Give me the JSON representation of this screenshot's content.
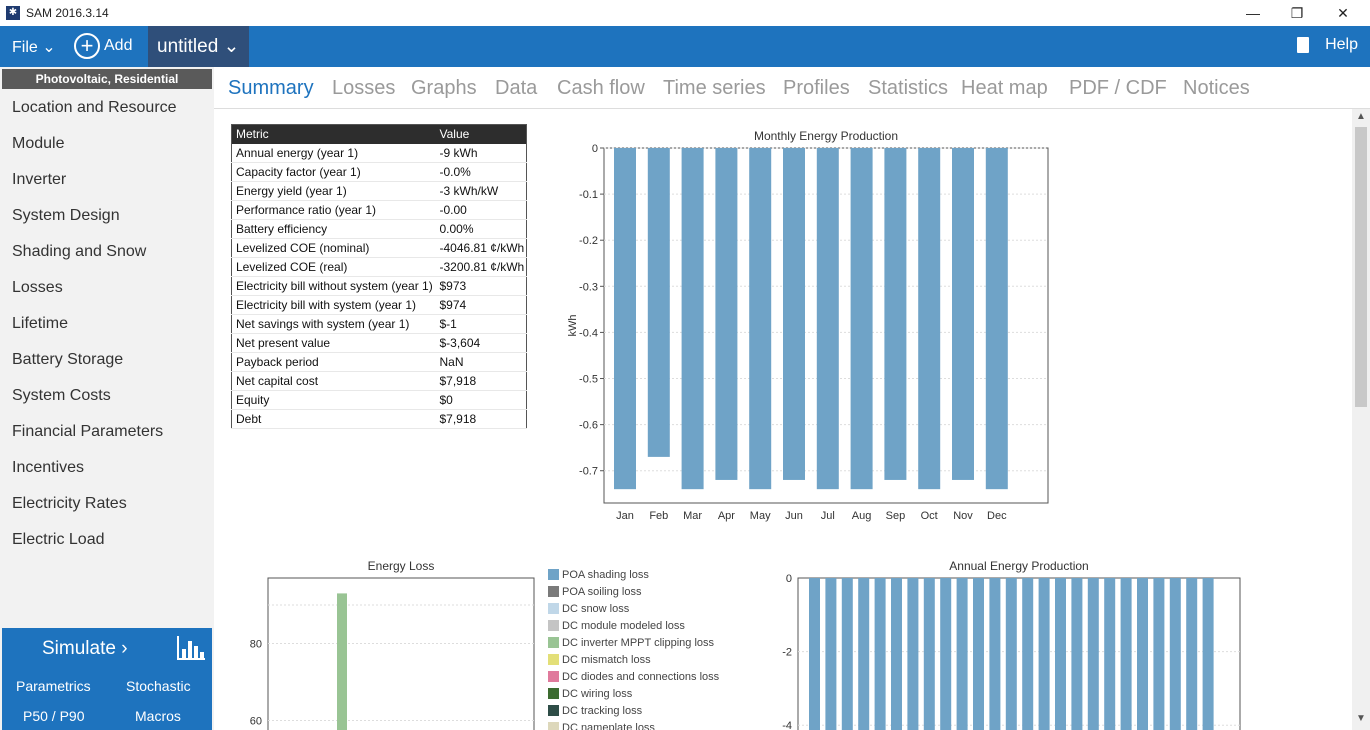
{
  "window": {
    "title": "SAM 2016.3.14",
    "controls": {
      "minimize": "—",
      "restore": "❐",
      "close": "✕"
    }
  },
  "topbar": {
    "file_label": "File ⌄",
    "add_label": "Add",
    "case_label": "untitled ⌄",
    "help_label": "Help"
  },
  "sidebar": {
    "technology": "Photovoltaic, Residential",
    "items": [
      "Location and Resource",
      "Module",
      "Inverter",
      "System Design",
      "Shading and Snow",
      "Losses",
      "Lifetime",
      "Battery Storage",
      "System Costs",
      "Financial Parameters",
      "Incentives",
      "Electricity Rates",
      "Electric Load"
    ],
    "simulate_label": "Simulate ›",
    "parametrics_label": "Parametrics",
    "stochastic_label": "Stochastic",
    "p50_label": "P50 / P90",
    "macros_label": "Macros"
  },
  "tabs": [
    "Summary",
    "Losses",
    "Graphs",
    "Data",
    "Cash flow",
    "Time series",
    "Profiles",
    "Statistics",
    "Heat map",
    "PDF / CDF",
    "Notices"
  ],
  "active_tab": "Summary",
  "metrics_table": {
    "headers": [
      "Metric",
      "Value"
    ],
    "rows": [
      [
        "Annual energy (year 1)",
        "-9 kWh"
      ],
      [
        "Capacity factor (year 1)",
        "-0.0%"
      ],
      [
        "Energy yield (year 1)",
        "-3 kWh/kW"
      ],
      [
        "Performance ratio (year 1)",
        "-0.00"
      ],
      [
        "Battery efficiency",
        "0.00%"
      ],
      [
        "Levelized COE (nominal)",
        "-4046.81 ¢/kWh"
      ],
      [
        "Levelized COE (real)",
        "-3200.81 ¢/kWh"
      ],
      [
        "Electricity bill without system (year 1)",
        "$973"
      ],
      [
        "Electricity bill with system (year 1)",
        "$974"
      ],
      [
        "Net savings with system (year 1)",
        "$-1"
      ],
      [
        "Net present value",
        "$-3,604"
      ],
      [
        "Payback period",
        "NaN"
      ],
      [
        "Net capital cost",
        "$7,918"
      ],
      [
        "Equity",
        "$0"
      ],
      [
        "Debt",
        "$7,918"
      ]
    ]
  },
  "colors": {
    "accent": "#1e73be",
    "bar": "#6fa3c7",
    "loss_bar": "#99c494"
  },
  "chart_data": [
    {
      "type": "bar",
      "title": "Monthly Energy Production",
      "xlabel": "",
      "ylabel": "kWh",
      "categories": [
        "Jan",
        "Feb",
        "Mar",
        "Apr",
        "May",
        "Jun",
        "Jul",
        "Aug",
        "Sep",
        "Oct",
        "Nov",
        "Dec"
      ],
      "values": [
        -0.74,
        -0.67,
        -0.74,
        -0.72,
        -0.74,
        -0.72,
        -0.74,
        -0.74,
        -0.72,
        -0.74,
        -0.72,
        -0.74
      ],
      "ylim": [
        -0.77,
        0
      ],
      "yticks": [
        "0",
        "-0.1",
        "-0.2",
        "-0.3",
        "-0.4",
        "-0.5",
        "-0.6",
        "-0.7"
      ],
      "ytick_values": [
        0,
        -0.1,
        -0.2,
        -0.3,
        -0.4,
        -0.5,
        -0.6,
        -0.7
      ],
      "grid": true
    },
    {
      "type": "bar",
      "title": "Energy Loss",
      "yticks": [
        "80",
        "60"
      ],
      "ytick_values": [
        80,
        60
      ],
      "visible_bar_value": 93,
      "legend": [
        {
          "name": "POA shading loss",
          "color": "#6fa3c7"
        },
        {
          "name": "POA soiling loss",
          "color": "#7a7a7a"
        },
        {
          "name": "DC snow loss",
          "color": "#c0d7e8"
        },
        {
          "name": "DC module modeled loss",
          "color": "#c4c4c4"
        },
        {
          "name": "DC inverter MPPT clipping loss",
          "color": "#99c494"
        },
        {
          "name": "DC mismatch loss",
          "color": "#e3df78"
        },
        {
          "name": "DC diodes and connections loss",
          "color": "#e07a9c"
        },
        {
          "name": "DC wiring loss",
          "color": "#3c6b30"
        },
        {
          "name": "DC tracking loss",
          "color": "#2e4d47"
        },
        {
          "name": "DC nameplate loss",
          "color": "#ddd8bb"
        }
      ]
    },
    {
      "type": "bar",
      "title": "Annual Energy Production",
      "yticks": [
        "0",
        "-2",
        "-4"
      ],
      "ytick_values": [
        0,
        -2,
        -4
      ],
      "bar_count": 25
    }
  ]
}
